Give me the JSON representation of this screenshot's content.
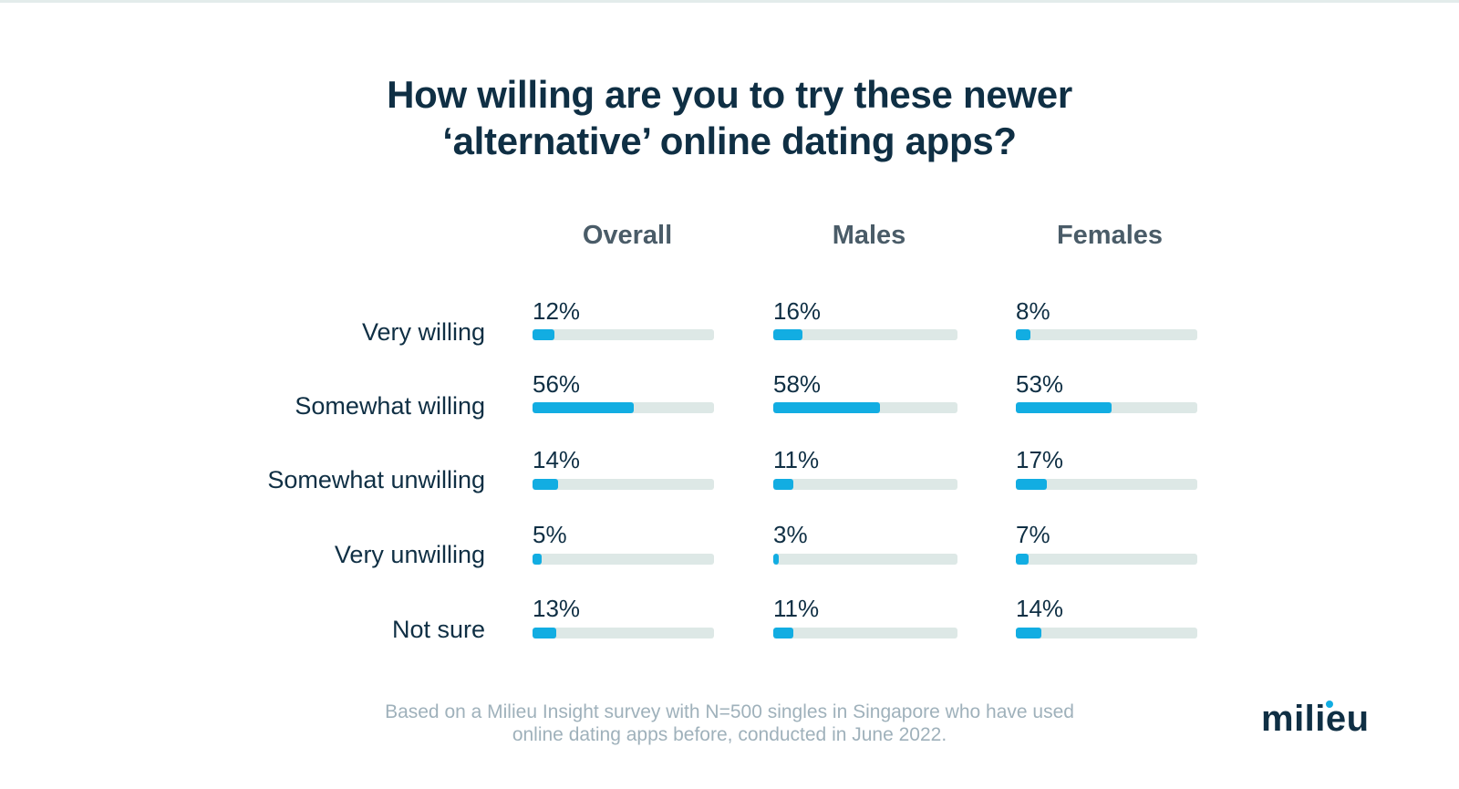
{
  "colors": {
    "title": "#0f2f44",
    "header": "#4a5c68",
    "bar_fill": "#12ade2",
    "bar_track": "#dde8e6",
    "footnote": "#9fb1bb",
    "logo_accent": "#12ade2"
  },
  "chart_data": {
    "type": "bar",
    "orientation": "horizontal",
    "title": "How willing are you to try these newer ‘alternative’ online dating apps?",
    "title_lines": [
      "How willing are you to try these newer",
      "‘alternative’ online dating apps?"
    ],
    "categories": [
      "Very willing",
      "Somewhat willing",
      "Somewhat unwilling",
      "Very unwilling",
      "Not sure"
    ],
    "series": [
      {
        "name": "Overall",
        "values": [
          12,
          56,
          14,
          5,
          13
        ],
        "labels": [
          "12%",
          "56%",
          "14%",
          "5%",
          "13%"
        ]
      },
      {
        "name": "Males",
        "values": [
          16,
          58,
          11,
          3,
          11
        ],
        "labels": [
          "16%",
          "58%",
          "11%",
          "3%",
          "11%"
        ]
      },
      {
        "name": "Females",
        "values": [
          8,
          53,
          17,
          7,
          14
        ],
        "labels": [
          "8%",
          "53%",
          "17%",
          "7%",
          "14%"
        ]
      }
    ],
    "xlim": [
      0,
      100
    ],
    "unit": "%",
    "grid": false,
    "legend": "none"
  },
  "footnote_lines": [
    "Based on a Milieu Insight survey with N=500 singles in Singapore who have used",
    "online dating apps before, conducted in June 2022."
  ],
  "brand": {
    "logo_text": "milieu",
    "logo_icon": "milieu-logo-icon"
  }
}
